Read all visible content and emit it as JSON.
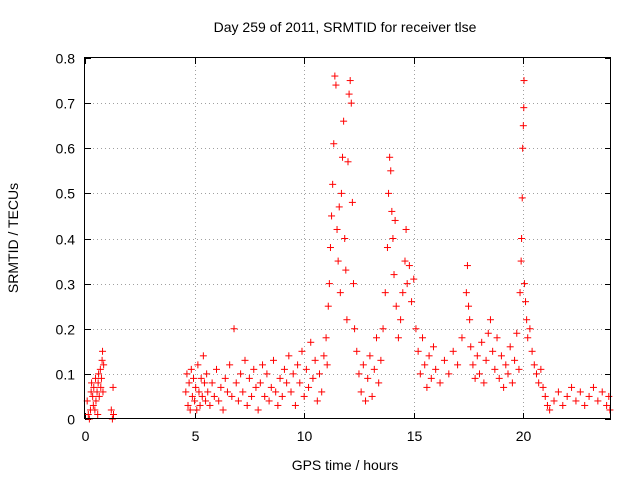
{
  "chart_data": {
    "type": "scatter",
    "title": "Day 259 of 2011, SRMTID for receiver tlse",
    "xlabel": "GPS time / hours",
    "ylabel": "SRMTID / TECUs",
    "xlim": [
      0,
      24
    ],
    "ylim": [
      0,
      0.8
    ],
    "xticks": [
      0,
      5,
      10,
      15,
      20
    ],
    "xtick_labels": [
      "0",
      "5",
      "10",
      "15",
      "20"
    ],
    "yticks": [
      0,
      0.1,
      0.2,
      0.3,
      0.4,
      0.5,
      0.6,
      0.7,
      0.8
    ],
    "ytick_labels": [
      "0",
      "0.1",
      "0.2",
      "0.3",
      "0.4",
      "0.5",
      "0.6",
      "0.7",
      "0.8"
    ],
    "grid": true,
    "marker": "+",
    "color": "#ff0000",
    "series": [
      {
        "name": "SRMTID",
        "points": [
          [
            0.1,
            0.04
          ],
          [
            0.15,
            0.01
          ],
          [
            0.2,
            0.0
          ],
          [
            0.25,
            0.02
          ],
          [
            0.28,
            0.06
          ],
          [
            0.3,
            0.08
          ],
          [
            0.35,
            0.05
          ],
          [
            0.38,
            0.03
          ],
          [
            0.4,
            0.07
          ],
          [
            0.45,
            0.02
          ],
          [
            0.48,
            0.09
          ],
          [
            0.5,
            0.04
          ],
          [
            0.55,
            0.06
          ],
          [
            0.58,
            0.01
          ],
          [
            0.6,
            0.08
          ],
          [
            0.62,
            0.1
          ],
          [
            0.65,
            0.05
          ],
          [
            0.7,
            0.11
          ],
          [
            0.72,
            0.07
          ],
          [
            0.75,
            0.09
          ],
          [
            0.78,
            0.13
          ],
          [
            0.8,
            0.15
          ],
          [
            0.82,
            0.06
          ],
          [
            0.85,
            0.12
          ],
          [
            1.2,
            0.02
          ],
          [
            1.25,
            0.0
          ],
          [
            1.28,
            0.07
          ],
          [
            1.3,
            0.01
          ],
          [
            4.6,
            0.06
          ],
          [
            4.65,
            0.1
          ],
          [
            4.7,
            0.03
          ],
          [
            4.75,
            0.08
          ],
          [
            4.8,
            0.02
          ],
          [
            4.85,
            0.11
          ],
          [
            4.9,
            0.05
          ],
          [
            4.95,
            0.09
          ],
          [
            5.0,
            0.04
          ],
          [
            5.05,
            0.07
          ],
          [
            5.1,
            0.02
          ],
          [
            5.15,
            0.12
          ],
          [
            5.2,
            0.06
          ],
          [
            5.25,
            0.03
          ],
          [
            5.3,
            0.09
          ],
          [
            5.35,
            0.05
          ],
          [
            5.4,
            0.14
          ],
          [
            5.45,
            0.08
          ],
          [
            5.5,
            0.04
          ],
          [
            5.55,
            0.1
          ],
          [
            5.6,
            0.06
          ],
          [
            5.7,
            0.03
          ],
          [
            5.8,
            0.08
          ],
          [
            5.9,
            0.05
          ],
          [
            6.0,
            0.11
          ],
          [
            6.1,
            0.04
          ],
          [
            6.2,
            0.07
          ],
          [
            6.3,
            0.02
          ],
          [
            6.4,
            0.09
          ],
          [
            6.5,
            0.06
          ],
          [
            6.6,
            0.12
          ],
          [
            6.7,
            0.05
          ],
          [
            6.8,
            0.2
          ],
          [
            6.9,
            0.08
          ],
          [
            7.0,
            0.04
          ],
          [
            7.1,
            0.1
          ],
          [
            7.2,
            0.06
          ],
          [
            7.3,
            0.13
          ],
          [
            7.4,
            0.03
          ],
          [
            7.5,
            0.09
          ],
          [
            7.6,
            0.05
          ],
          [
            7.7,
            0.11
          ],
          [
            7.8,
            0.07
          ],
          [
            7.9,
            0.02
          ],
          [
            8.0,
            0.08
          ],
          [
            8.1,
            0.12
          ],
          [
            8.2,
            0.05
          ],
          [
            8.3,
            0.1
          ],
          [
            8.4,
            0.04
          ],
          [
            8.5,
            0.07
          ],
          [
            8.6,
            0.13
          ],
          [
            8.7,
            0.06
          ],
          [
            8.8,
            0.03
          ],
          [
            8.9,
            0.09
          ],
          [
            9.0,
            0.05
          ],
          [
            9.1,
            0.11
          ],
          [
            9.2,
            0.08
          ],
          [
            9.3,
            0.14
          ],
          [
            9.4,
            0.06
          ],
          [
            9.5,
            0.1
          ],
          [
            9.6,
            0.03
          ],
          [
            9.7,
            0.12
          ],
          [
            9.8,
            0.08
          ],
          [
            9.9,
            0.15
          ],
          [
            10.0,
            0.05
          ],
          [
            10.1,
            0.11
          ],
          [
            10.2,
            0.07
          ],
          [
            10.3,
            0.17
          ],
          [
            10.4,
            0.09
          ],
          [
            10.5,
            0.13
          ],
          [
            10.6,
            0.04
          ],
          [
            10.7,
            0.1
          ],
          [
            10.8,
            0.06
          ],
          [
            10.9,
            0.14
          ],
          [
            11.0,
            0.18
          ],
          [
            11.05,
            0.12
          ],
          [
            11.1,
            0.25
          ],
          [
            11.15,
            0.3
          ],
          [
            11.2,
            0.38
          ],
          [
            11.25,
            0.45
          ],
          [
            11.3,
            0.52
          ],
          [
            11.35,
            0.61
          ],
          [
            11.4,
            0.76
          ],
          [
            11.45,
            0.74
          ],
          [
            11.5,
            0.42
          ],
          [
            11.55,
            0.35
          ],
          [
            11.6,
            0.47
          ],
          [
            11.65,
            0.28
          ],
          [
            11.7,
            0.5
          ],
          [
            11.75,
            0.58
          ],
          [
            11.8,
            0.66
          ],
          [
            11.85,
            0.4
          ],
          [
            11.9,
            0.33
          ],
          [
            11.95,
            0.22
          ],
          [
            12.0,
            0.57
          ],
          [
            12.05,
            0.72
          ],
          [
            12.1,
            0.75
          ],
          [
            12.15,
            0.7
          ],
          [
            12.2,
            0.48
          ],
          [
            12.25,
            0.3
          ],
          [
            12.3,
            0.2
          ],
          [
            12.4,
            0.15
          ],
          [
            12.5,
            0.1
          ],
          [
            12.6,
            0.06
          ],
          [
            12.7,
            0.12
          ],
          [
            12.8,
            0.04
          ],
          [
            12.9,
            0.09
          ],
          [
            13.0,
            0.14
          ],
          [
            13.1,
            0.05
          ],
          [
            13.2,
            0.11
          ],
          [
            13.3,
            0.18
          ],
          [
            13.4,
            0.08
          ],
          [
            13.5,
            0.13
          ],
          [
            13.6,
            0.2
          ],
          [
            13.7,
            0.28
          ],
          [
            13.8,
            0.38
          ],
          [
            13.85,
            0.5
          ],
          [
            13.9,
            0.58
          ],
          [
            13.95,
            0.55
          ],
          [
            14.0,
            0.46
          ],
          [
            14.05,
            0.4
          ],
          [
            14.1,
            0.32
          ],
          [
            14.15,
            0.44
          ],
          [
            14.2,
            0.25
          ],
          [
            14.3,
            0.18
          ],
          [
            14.4,
            0.22
          ],
          [
            14.5,
            0.28
          ],
          [
            14.6,
            0.35
          ],
          [
            14.65,
            0.42
          ],
          [
            14.7,
            0.3
          ],
          [
            14.8,
            0.34
          ],
          [
            14.9,
            0.26
          ],
          [
            15.0,
            0.31
          ],
          [
            15.1,
            0.2
          ],
          [
            15.2,
            0.15
          ],
          [
            15.3,
            0.1
          ],
          [
            15.4,
            0.18
          ],
          [
            15.5,
            0.12
          ],
          [
            15.6,
            0.07
          ],
          [
            15.7,
            0.14
          ],
          [
            15.8,
            0.09
          ],
          [
            15.9,
            0.16
          ],
          [
            16.0,
            0.11
          ],
          [
            16.2,
            0.08
          ],
          [
            16.4,
            0.13
          ],
          [
            16.6,
            0.1
          ],
          [
            16.8,
            0.15
          ],
          [
            17.0,
            0.12
          ],
          [
            17.2,
            0.18
          ],
          [
            17.4,
            0.28
          ],
          [
            17.45,
            0.34
          ],
          [
            17.5,
            0.25
          ],
          [
            17.55,
            0.22
          ],
          [
            17.6,
            0.16
          ],
          [
            17.7,
            0.12
          ],
          [
            17.8,
            0.09
          ],
          [
            17.9,
            0.14
          ],
          [
            18.0,
            0.1
          ],
          [
            18.1,
            0.17
          ],
          [
            18.2,
            0.08
          ],
          [
            18.3,
            0.13
          ],
          [
            18.4,
            0.19
          ],
          [
            18.5,
            0.22
          ],
          [
            18.6,
            0.15
          ],
          [
            18.7,
            0.11
          ],
          [
            18.8,
            0.18
          ],
          [
            18.9,
            0.09
          ],
          [
            19.0,
            0.14
          ],
          [
            19.1,
            0.07
          ],
          [
            19.2,
            0.12
          ],
          [
            19.3,
            0.1
          ],
          [
            19.4,
            0.16
          ],
          [
            19.5,
            0.08
          ],
          [
            19.6,
            0.13
          ],
          [
            19.7,
            0.19
          ],
          [
            19.8,
            0.11
          ],
          [
            19.85,
            0.28
          ],
          [
            19.9,
            0.35
          ],
          [
            19.92,
            0.4
          ],
          [
            19.95,
            0.49
          ],
          [
            19.97,
            0.6
          ],
          [
            20.0,
            0.65
          ],
          [
            20.02,
            0.69
          ],
          [
            20.03,
            0.75
          ],
          [
            20.05,
            0.3
          ],
          [
            20.1,
            0.26
          ],
          [
            20.15,
            0.22
          ],
          [
            20.2,
            0.18
          ],
          [
            20.3,
            0.2
          ],
          [
            20.4,
            0.15
          ],
          [
            20.5,
            0.12
          ],
          [
            20.6,
            0.1
          ],
          [
            20.7,
            0.08
          ],
          [
            20.8,
            0.11
          ],
          [
            20.9,
            0.07
          ],
          [
            21.0,
            0.05
          ],
          [
            21.1,
            0.03
          ],
          [
            21.2,
            0.02
          ],
          [
            21.4,
            0.04
          ],
          [
            21.6,
            0.06
          ],
          [
            21.8,
            0.03
          ],
          [
            22.0,
            0.05
          ],
          [
            22.2,
            0.07
          ],
          [
            22.4,
            0.04
          ],
          [
            22.6,
            0.06
          ],
          [
            22.8,
            0.03
          ],
          [
            23.0,
            0.05
          ],
          [
            23.2,
            0.07
          ],
          [
            23.4,
            0.04
          ],
          [
            23.6,
            0.06
          ],
          [
            23.8,
            0.03
          ],
          [
            23.9,
            0.05
          ],
          [
            23.95,
            0.02
          ]
        ]
      }
    ]
  }
}
